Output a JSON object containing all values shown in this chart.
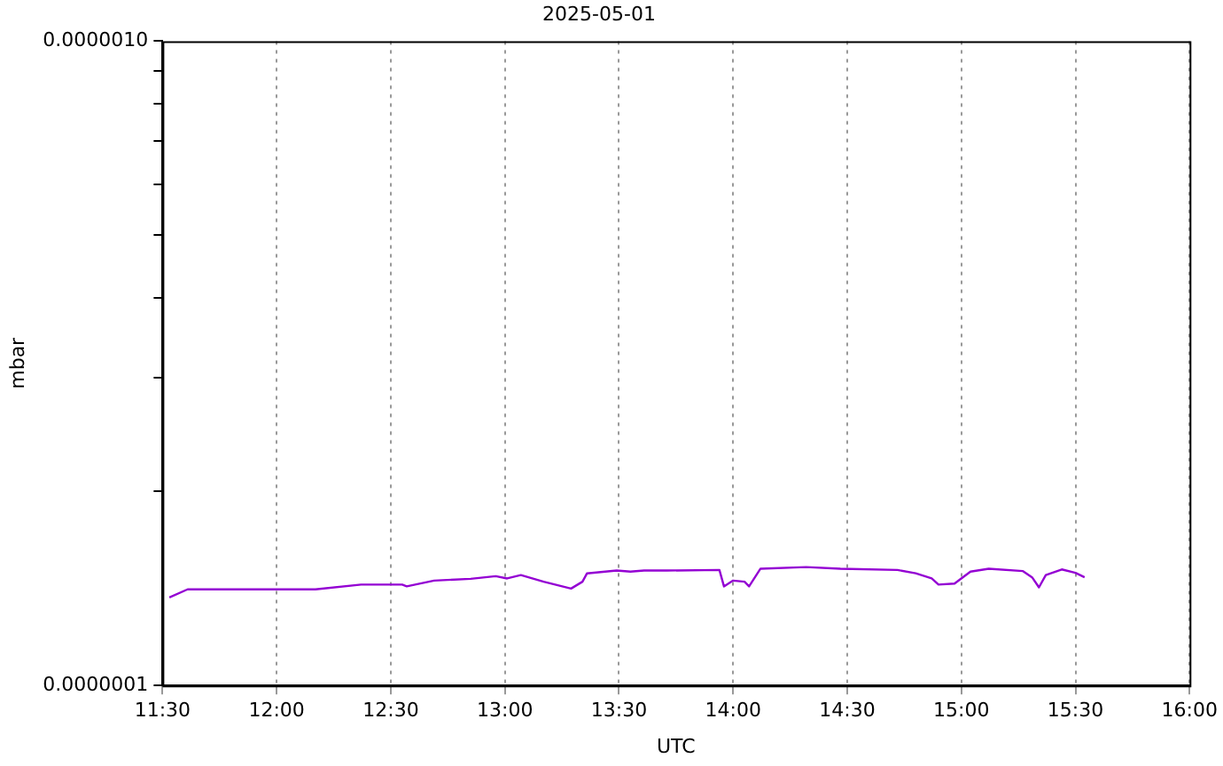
{
  "chart_data": {
    "type": "line",
    "title": "2025-05-01",
    "xlabel": "UTC",
    "ylabel": "mbar",
    "x": [
      11.53,
      11.61,
      12.17,
      12.37,
      12.55,
      12.57,
      12.69,
      12.85,
      12.96,
      13.01,
      13.07,
      13.17,
      13.29,
      13.34,
      13.36,
      13.49,
      13.55,
      13.61,
      13.71,
      13.94,
      13.96,
      14.0,
      14.05,
      14.07,
      14.12,
      14.32,
      14.47,
      14.72,
      14.8,
      14.87,
      14.9,
      14.97,
      15.04,
      15.12,
      15.27,
      15.31,
      15.34,
      15.37,
      15.44,
      15.5,
      15.54
    ],
    "series": [
      {
        "color": "#9400d3",
        "values": [
          1.37e-07,
          1.41e-07,
          1.41e-07,
          1.434e-07,
          1.434e-07,
          1.425e-07,
          1.455e-07,
          1.464e-07,
          1.478e-07,
          1.466e-07,
          1.484e-07,
          1.449e-07,
          1.414e-07,
          1.449e-07,
          1.493e-07,
          1.508e-07,
          1.502e-07,
          1.508e-07,
          1.508e-07,
          1.511e-07,
          1.425e-07,
          1.455e-07,
          1.449e-07,
          1.425e-07,
          1.518e-07,
          1.527e-07,
          1.518e-07,
          1.511e-07,
          1.493e-07,
          1.466e-07,
          1.434e-07,
          1.439e-07,
          1.502e-07,
          1.518e-07,
          1.505e-07,
          1.472e-07,
          1.42e-07,
          1.484e-07,
          1.514e-07,
          1.496e-07,
          1.472e-07
        ]
      }
    ],
    "xlim": [
      11.5,
      16
    ],
    "xticks": [
      {
        "value": 11.5,
        "label": "11:30"
      },
      {
        "value": 12,
        "label": "12:00"
      },
      {
        "value": 12.5,
        "label": "12:30"
      },
      {
        "value": 13,
        "label": "13:00"
      },
      {
        "value": 13.5,
        "label": "13:30"
      },
      {
        "value": 14,
        "label": "14:00"
      },
      {
        "value": 14.5,
        "label": "14:30"
      },
      {
        "value": 15,
        "label": "15:00"
      },
      {
        "value": 15.5,
        "label": "15:30"
      },
      {
        "value": 16,
        "label": "16:00"
      }
    ],
    "ylim": [
      1e-07,
      1e-06
    ],
    "yticks": [
      {
        "value": 1e-07,
        "label": "0.0000001"
      },
      {
        "value": 2e-07,
        "label": null
      },
      {
        "value": 3e-07,
        "label": null
      },
      {
        "value": 4e-07,
        "label": null
      },
      {
        "value": 5e-07,
        "label": null
      },
      {
        "value": 6e-07,
        "label": null
      },
      {
        "value": 7e-07,
        "label": null
      },
      {
        "value": 8e-07,
        "label": null
      },
      {
        "value": 9e-07,
        "label": null
      },
      {
        "value": 1e-06,
        "label": "0.0000010"
      }
    ],
    "log": "y",
    "grid": "x",
    "legend": false,
    "marker": "none",
    "line_style": "solid"
  }
}
